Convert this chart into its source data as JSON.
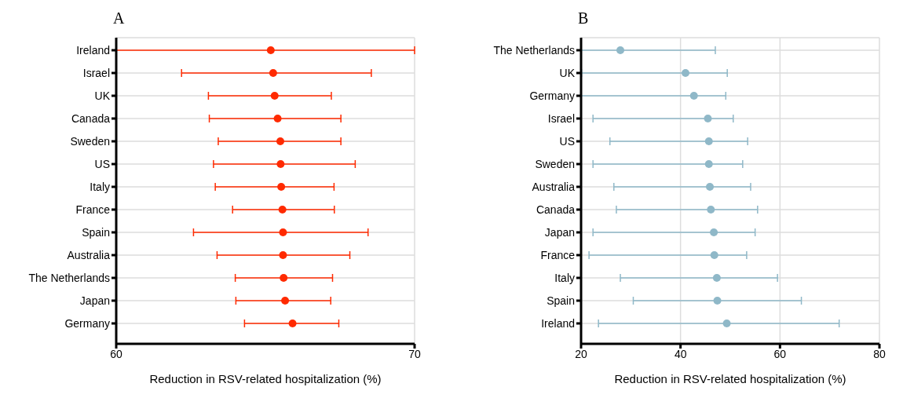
{
  "chart_data": [
    {
      "type": "scatter",
      "title": "A",
      "xlabel": "Reduction in RSV-related hospitalization (%)",
      "orientation": "horizontal",
      "marker": "circle",
      "grid": true,
      "categories": [
        "Ireland",
        "Israel",
        "UK",
        "Canada",
        "Sweden",
        "US",
        "Italy",
        "France",
        "Spain",
        "Australia",
        "The Netherlands",
        "Japan",
        "Germany"
      ],
      "values": [
        65.18,
        65.26,
        65.31,
        65.41,
        65.5,
        65.51,
        65.53,
        65.57,
        65.59,
        65.59,
        65.61,
        65.66,
        65.91
      ],
      "errors": [
        [
          60.0,
          70.0
        ],
        [
          62.19,
          68.55
        ],
        [
          63.09,
          67.21
        ],
        [
          63.12,
          67.53
        ],
        [
          63.42,
          67.53
        ],
        [
          63.26,
          68.01
        ],
        [
          63.32,
          67.3
        ],
        [
          63.9,
          67.31
        ],
        [
          62.59,
          68.44
        ],
        [
          63.38,
          67.83
        ],
        [
          63.99,
          67.25
        ],
        [
          64.01,
          67.19
        ],
        [
          64.3,
          67.46
        ]
      ],
      "color": "#ff2a00",
      "xlim": [
        60,
        70
      ],
      "xticks": [
        60,
        70
      ]
    },
    {
      "type": "scatter",
      "title": "B",
      "xlabel": "Reduction in RSV-related hospitalization (%)",
      "orientation": "horizontal",
      "marker": "circle",
      "grid": true,
      "categories": [
        "The Netherlands",
        "UK",
        "Germany",
        "Israel",
        "US",
        "Sweden",
        "Australia",
        "Canada",
        "Japan",
        "France",
        "Italy",
        "Spain",
        "Ireland"
      ],
      "values": [
        27.9,
        41.0,
        42.7,
        45.5,
        45.7,
        45.7,
        45.9,
        46.1,
        46.7,
        46.8,
        47.3,
        47.4,
        49.3
      ],
      "errors": [
        [
          20.0,
          47.0
        ],
        [
          20.1,
          49.4
        ],
        [
          20.0,
          49.1
        ],
        [
          22.4,
          50.6
        ],
        [
          25.8,
          53.5
        ],
        [
          22.4,
          52.5
        ],
        [
          26.6,
          54.1
        ],
        [
          27.1,
          55.5
        ],
        [
          22.4,
          55.0
        ],
        [
          21.6,
          53.3
        ],
        [
          27.9,
          59.5
        ],
        [
          30.5,
          64.3
        ],
        [
          23.5,
          71.9
        ]
      ],
      "color": "#8fb8c8",
      "xlim": [
        20,
        80
      ],
      "xticks": [
        20,
        40,
        60,
        80
      ]
    }
  ]
}
